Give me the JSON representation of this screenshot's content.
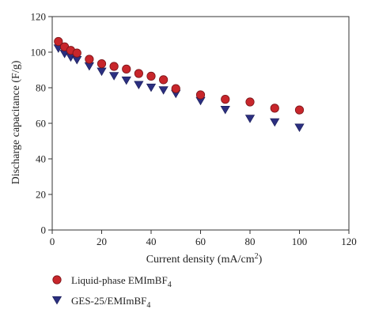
{
  "chart_data": {
    "type": "scatter",
    "xlabel": "Current density (mA/cm",
    "xlabel_sup": "2",
    "xlabel_tail": ")",
    "ylabel": "Discharge capacitance (F/g)",
    "xlim": [
      0,
      120
    ],
    "ylim": [
      0,
      120
    ],
    "xticks": [
      "0",
      "20",
      "40",
      "60",
      "80",
      "100",
      "120"
    ],
    "yticks": [
      "0",
      "20",
      "40",
      "60",
      "80",
      "100",
      "120"
    ],
    "grid": false,
    "legend_position": "bottom-left",
    "series": [
      {
        "name": "Liquid-phase EMImBF",
        "name_sub": "4",
        "marker": "circle",
        "color": "#c8262b",
        "edge_color": "#7a1418",
        "x": [
          2.5,
          5,
          7.5,
          10,
          15,
          20,
          25,
          30,
          35,
          40,
          45,
          50,
          60,
          70,
          80,
          90,
          100
        ],
        "y": [
          106,
          103,
          101,
          99.5,
          96,
          93.5,
          92,
          90.5,
          88,
          86.5,
          84.5,
          79.5,
          76,
          73.5,
          72,
          68.5,
          67.5
        ]
      },
      {
        "name": "GES-25/EMImBF",
        "name_sub": "4",
        "marker": "triangle-down",
        "color": "#2b2f80",
        "edge_color": "#1a1d55",
        "x": [
          2.5,
          5,
          7.5,
          10,
          15,
          20,
          25,
          30,
          35,
          40,
          45,
          50,
          60,
          70,
          80,
          90,
          100
        ],
        "y": [
          102,
          99,
          97,
          95.5,
          92,
          89,
          86.5,
          84,
          81.5,
          80,
          78.5,
          76.5,
          72.5,
          67.5,
          62.5,
          60.5,
          57.5
        ]
      }
    ]
  }
}
